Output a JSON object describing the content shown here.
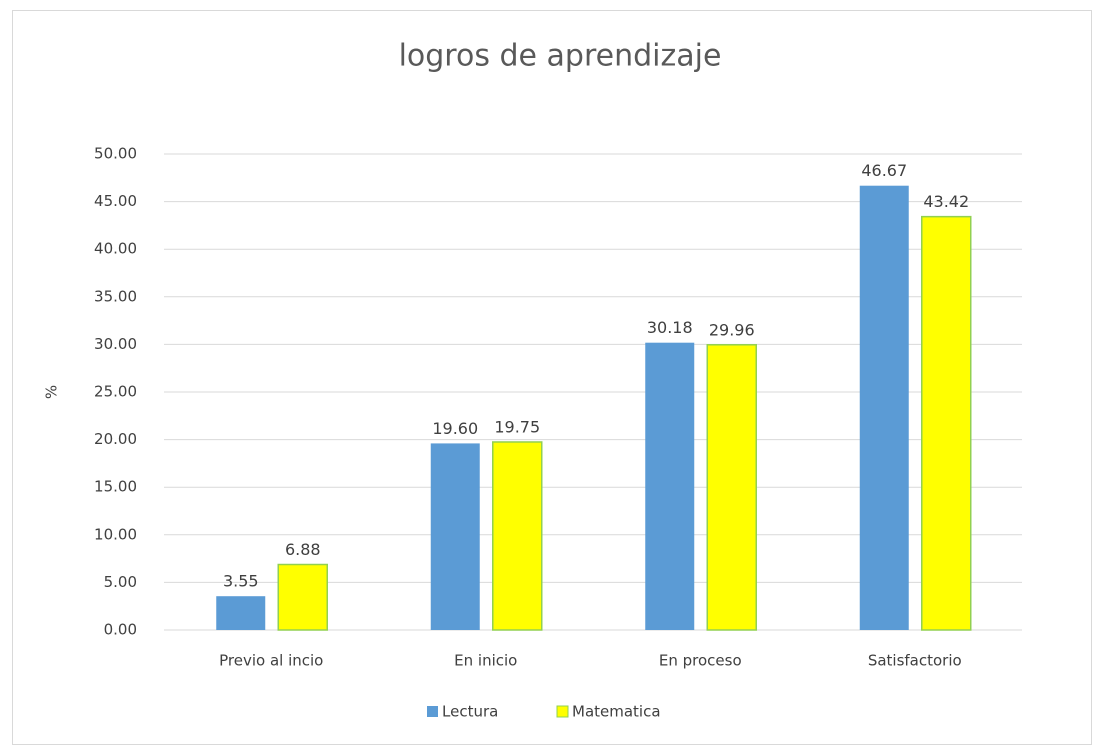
{
  "chart_data": {
    "type": "bar",
    "title": "logros de aprendizaje",
    "y_label": "%",
    "categories": [
      "Previo al incio",
      "En inicio",
      "En proceso",
      "Satisfactorio"
    ],
    "series": [
      {
        "name": "Lectura",
        "color": "#5b9bd5",
        "values": [
          3.55,
          19.6,
          30.18,
          46.67
        ],
        "value_labels": [
          "3.55",
          "19.60",
          "30.18",
          "46.67"
        ]
      },
      {
        "name": "Matematica",
        "color": "#ffff00",
        "edgecolor": "#92d050",
        "values": [
          6.88,
          19.75,
          29.96,
          43.42
        ],
        "value_labels": [
          "6.88",
          "19.75",
          "29.96",
          "43.42"
        ]
      }
    ],
    "ylim": [
      0,
      50
    ],
    "yticks": [
      {
        "value": 0,
        "label": "0.00"
      },
      {
        "value": 5,
        "label": "5.00"
      },
      {
        "value": 10,
        "label": "10.00"
      },
      {
        "value": 15,
        "label": "15.00"
      },
      {
        "value": 20,
        "label": "20.00"
      },
      {
        "value": 25,
        "label": "25.00"
      },
      {
        "value": 30,
        "label": "30.00"
      },
      {
        "value": 35,
        "label": "35.00"
      },
      {
        "value": 40,
        "label": "40.00"
      },
      {
        "value": 45,
        "label": "45.00"
      },
      {
        "value": 50,
        "label": "50.00"
      }
    ],
    "grid": true,
    "legend": "bottom"
  }
}
